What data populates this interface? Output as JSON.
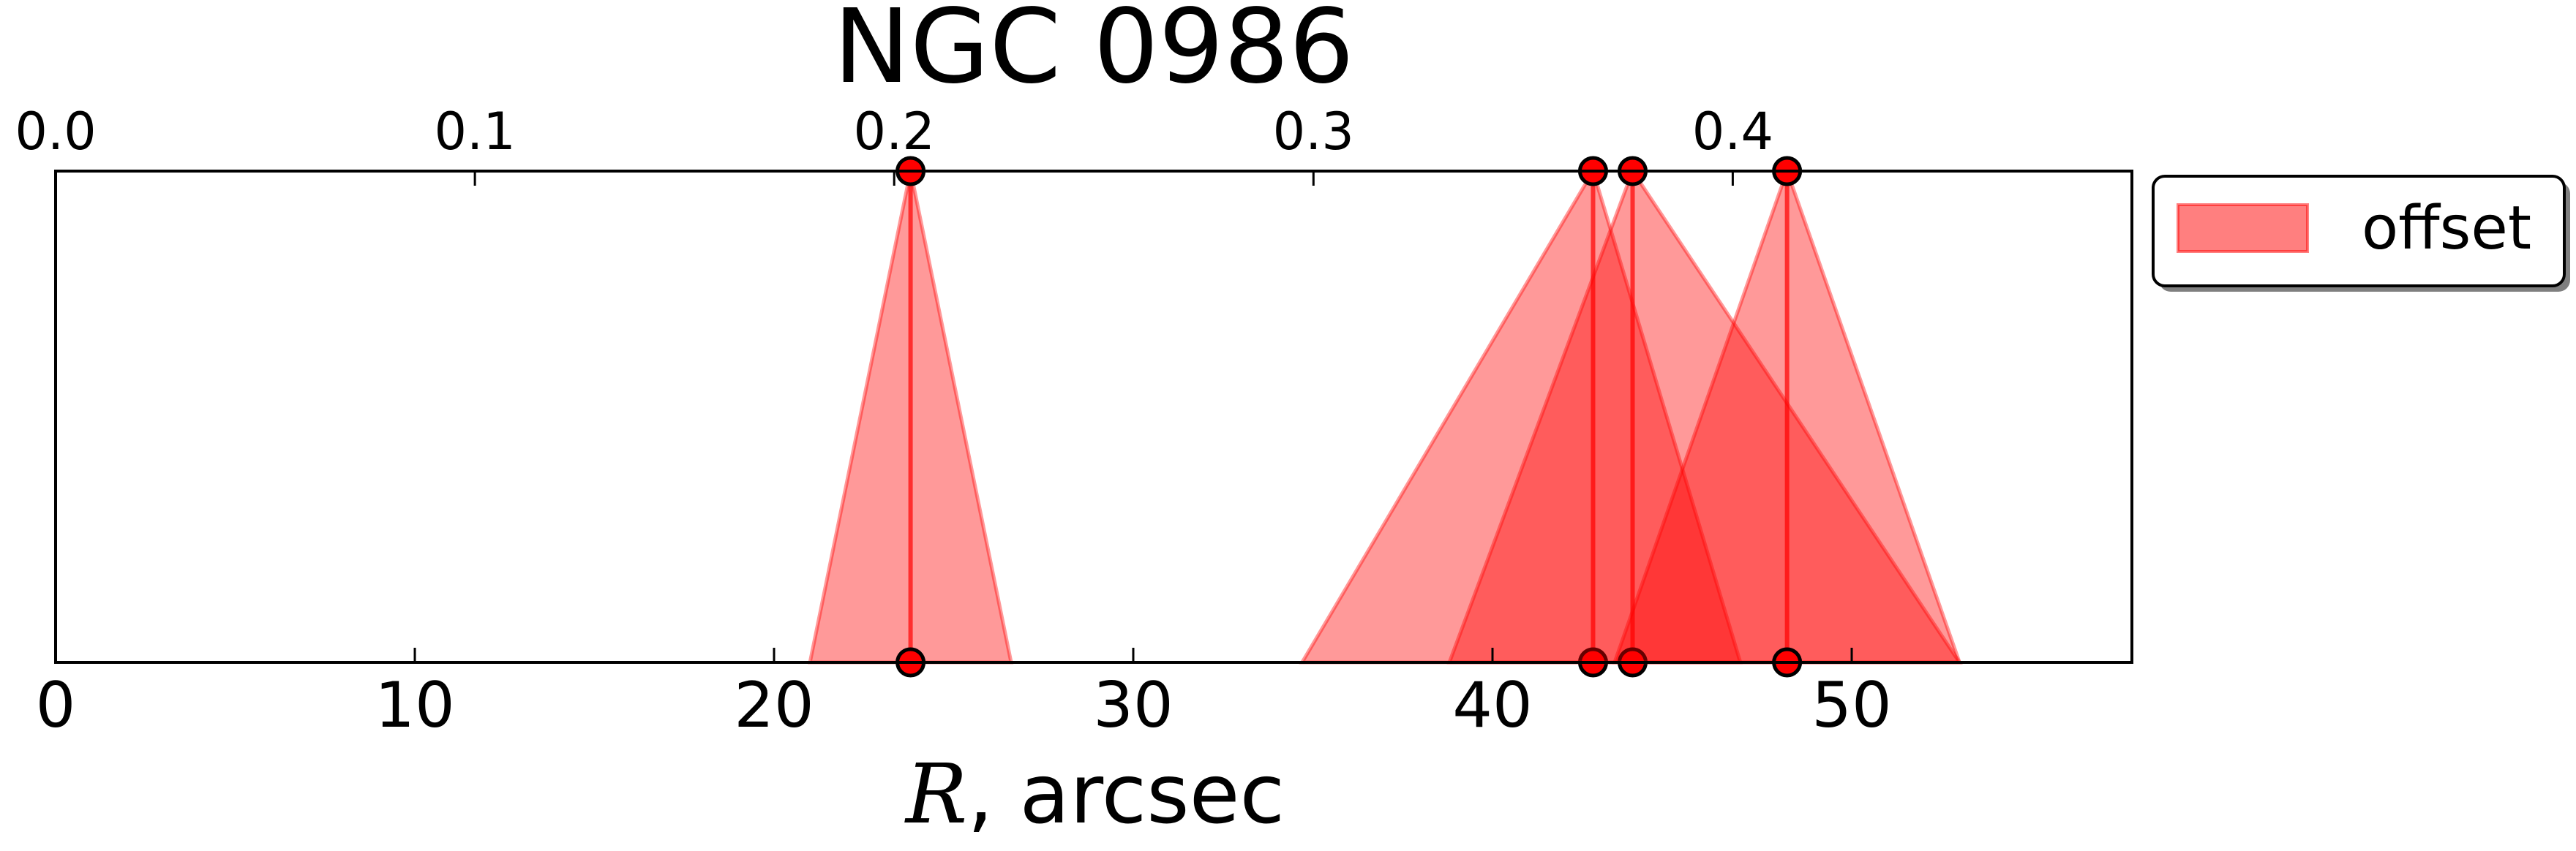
{
  "chart_data": {
    "type": "area",
    "title": "NGC 0986",
    "xlabel_math": "R",
    "xlabel_text": ", arcsec",
    "xlim": [
      0,
      57.8
    ],
    "xticks": [
      {
        "value": 0,
        "label": "0"
      },
      {
        "value": 10,
        "label": "10"
      },
      {
        "value": 20,
        "label": "20"
      },
      {
        "value": 30,
        "label": "30"
      },
      {
        "value": 40,
        "label": "40"
      },
      {
        "value": 50,
        "label": "50"
      }
    ],
    "top_axis": {
      "xlim": [
        0,
        0.4952
      ],
      "ticks": [
        {
          "value": 0.0,
          "label": "0.0"
        },
        {
          "value": 0.1,
          "label": "0.1"
        },
        {
          "value": 0.2,
          "label": "0.2"
        },
        {
          "value": 0.3,
          "label": "0.3"
        },
        {
          "value": 0.4,
          "label": "0.4"
        }
      ]
    },
    "grid": false,
    "legend": {
      "position": "outside-top-right",
      "entries": [
        "offset"
      ]
    },
    "colors": {
      "fill": "#ff0000",
      "marker": "#ff0000",
      "marker_edge": "#000000"
    },
    "series": [
      {
        "name": "offset",
        "peaks": [
          {
            "center": 23.8,
            "left": 21.0,
            "right": 26.6
          },
          {
            "center": 42.8,
            "left": 34.7,
            "right": 46.9
          },
          {
            "center": 43.9,
            "left": 38.8,
            "right": 53.0
          },
          {
            "center": 48.2,
            "left": 43.4,
            "right": 53.0
          }
        ]
      }
    ]
  }
}
